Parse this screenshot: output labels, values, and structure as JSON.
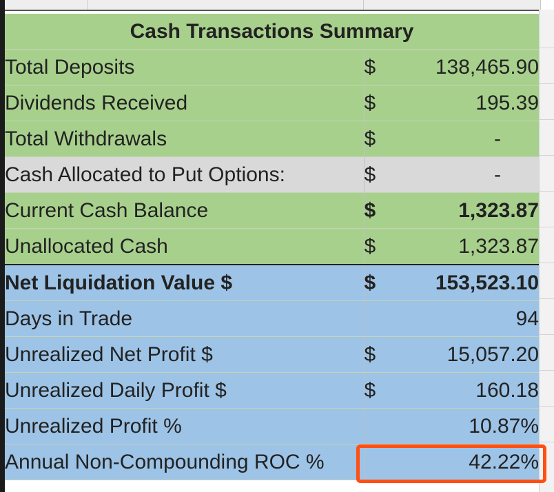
{
  "summary": {
    "title": "Cash Transactions Summary",
    "rows": [
      {
        "label": "Total Deposits",
        "currency": "$",
        "value": "138,465.90",
        "style": "green"
      },
      {
        "label": "Dividends Received",
        "currency": "$",
        "value": "195.39",
        "style": "green"
      },
      {
        "label": "Total Withdrawals",
        "currency": "$",
        "value": "-",
        "style": "green"
      },
      {
        "label": "Cash Allocated to Put Options:",
        "currency": "$",
        "value": "-",
        "style": "gray"
      },
      {
        "label": "Current Cash Balance",
        "currency": "$",
        "value": "1,323.87",
        "style": "green",
        "bold": true
      },
      {
        "label": "Unallocated Cash",
        "currency": "$",
        "value": "1,323.87",
        "style": "green"
      },
      {
        "label": "Net Liquidation Value $",
        "currency": "$",
        "value": "153,523.10",
        "style": "blue",
        "bold": true
      },
      {
        "label": "Days in Trade",
        "currency": "",
        "value": "94",
        "style": "blue"
      },
      {
        "label": "Unrealized Net Profit $",
        "currency": "$",
        "value": "15,057.20",
        "style": "blue"
      },
      {
        "label": "Unrealized Daily Profit $",
        "currency": "$",
        "value": "160.18",
        "style": "blue"
      },
      {
        "label": "Unrealized Profit %",
        "currency": "",
        "value": "10.87%",
        "style": "blue"
      },
      {
        "label": "Annual Non-Compounding ROC %",
        "currency": "",
        "value": "42.22%",
        "style": "blue",
        "highlighted": true
      }
    ]
  },
  "colors": {
    "green": "#a8d08d",
    "gray": "#d9d9d9",
    "blue": "#9dc3e6",
    "highlight": "#ff4f12"
  }
}
